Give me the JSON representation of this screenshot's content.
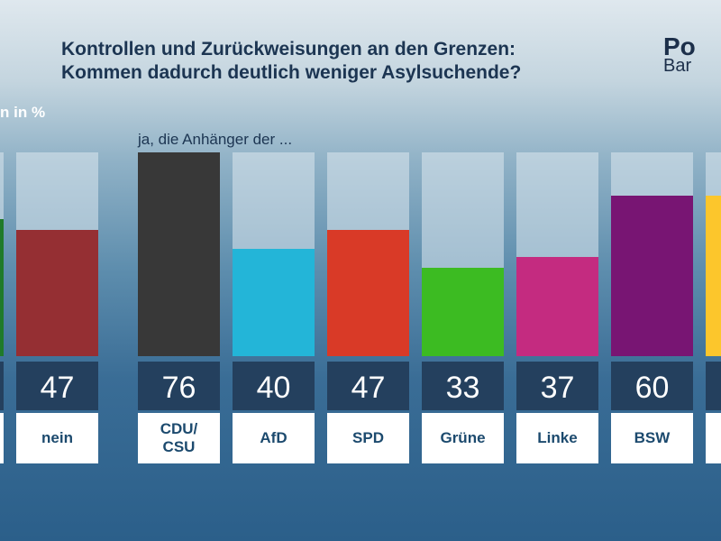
{
  "title_line1": "Kontrollen und Zurückweisungen an den Grenzen:",
  "title_line2": "Kommen dadurch deutlich weniger Asylsuchende?",
  "logo": {
    "line1": "Po",
    "line2": "Bar"
  },
  "chart_data": {
    "type": "bar",
    "unit_label": "n in %",
    "subtitle": "ja, die Anhänger der ...",
    "ylim": [
      0,
      76
    ],
    "categories": [
      "",
      "nein",
      "CDU/ CSU",
      "AfD",
      "SPD",
      "Grüne",
      "Linke",
      "BSW",
      ""
    ],
    "values": [
      51,
      47,
      76,
      40,
      47,
      33,
      37,
      60,
      60
    ],
    "value_labels": [
      "",
      "47",
      "76",
      "40",
      "47",
      "33",
      "37",
      "60",
      ""
    ],
    "colors": [
      "#1f7a2a",
      "#952f33",
      "#383838",
      "#23b5d8",
      "#d93a27",
      "#3cbb22",
      "#c42b80",
      "#781573",
      "#fcc62c"
    ]
  }
}
